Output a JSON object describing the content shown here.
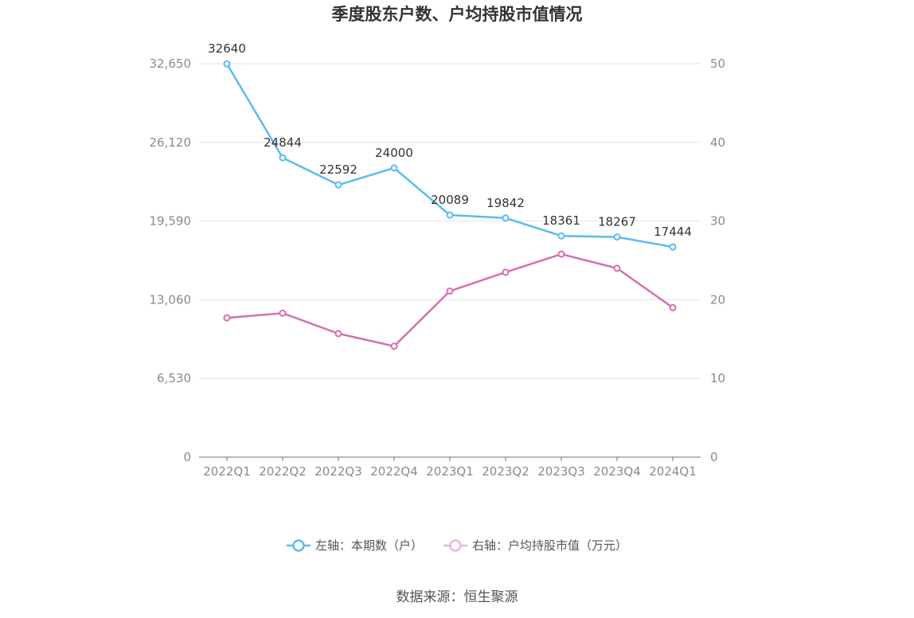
{
  "chart_data": {
    "type": "line",
    "title": "季度股东户数、户均持股市值情况",
    "categories": [
      "2022Q1",
      "2022Q2",
      "2022Q3",
      "2022Q4",
      "2023Q1",
      "2023Q2",
      "2023Q3",
      "2023Q4",
      "2024Q1"
    ],
    "y_left": {
      "ticks": [
        "0",
        "6,530",
        "13,060",
        "19,590",
        "26,120",
        "32,650"
      ],
      "range": [
        0,
        32650
      ]
    },
    "y_right": {
      "ticks": [
        "0",
        "10",
        "20",
        "30",
        "40",
        "50"
      ],
      "range": [
        0,
        50
      ]
    },
    "grid": true,
    "legend_position": "bottom",
    "series": [
      {
        "name": "左轴：本期数（户）",
        "axis": "left",
        "color": "#5bbcf0",
        "values": [
          32640,
          24844,
          22592,
          24000,
          20089,
          19842,
          18361,
          18267,
          17444
        ],
        "labels": [
          "32640",
          "24844",
          "22592",
          "24000",
          "20089",
          "19842",
          "18361",
          "18267",
          "17444"
        ]
      },
      {
        "name": "右轴：户均持股市值（万元）",
        "axis": "right",
        "color": "#d56fb1",
        "values": [
          17.7,
          18.3,
          15.7,
          14.1,
          21.1,
          23.5,
          25.8,
          24.0,
          19.0
        ]
      }
    ]
  },
  "source": "数据来源：恒生聚源"
}
